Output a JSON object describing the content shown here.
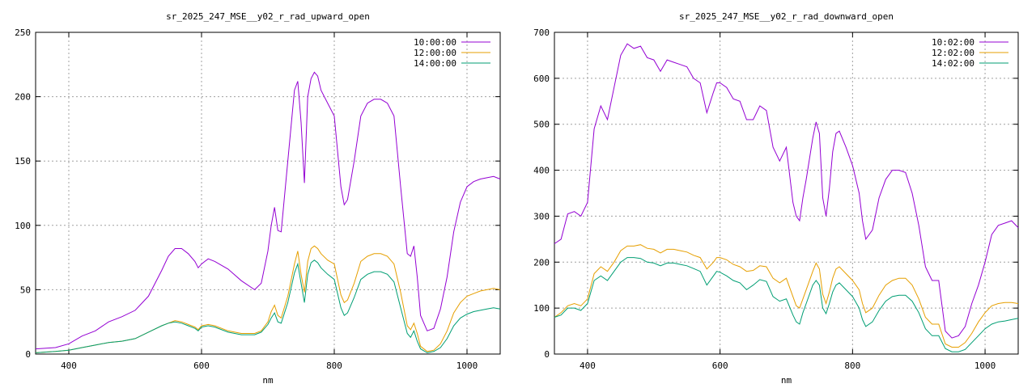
{
  "chart_data": [
    {
      "type": "line",
      "title": "sr_2025_247_MSE__y02_r_rad_upward_open",
      "xlabel": "nm",
      "ylabel": "",
      "xlim": [
        350,
        1050
      ],
      "ylim": [
        0,
        250
      ],
      "xticks": [
        400,
        600,
        800,
        1000
      ],
      "yticks": [
        0,
        50,
        100,
        150,
        200,
        250
      ],
      "grid": true,
      "legend_position": "top-right",
      "series": [
        {
          "name": "10:00:00",
          "color": "#9400d3",
          "x": [
            350,
            380,
            400,
            420,
            440,
            460,
            480,
            500,
            520,
            540,
            550,
            560,
            570,
            580,
            590,
            595,
            600,
            610,
            620,
            640,
            660,
            680,
            690,
            700,
            705,
            710,
            715,
            720,
            730,
            740,
            745,
            750,
            755,
            760,
            765,
            770,
            775,
            780,
            790,
            800,
            810,
            815,
            820,
            830,
            840,
            850,
            860,
            870,
            880,
            890,
            900,
            910,
            915,
            920,
            925,
            930,
            940,
            950,
            960,
            970,
            980,
            990,
            1000,
            1010,
            1020,
            1030,
            1040,
            1050
          ],
          "y": [
            4,
            5,
            8,
            14,
            18,
            25,
            29,
            34,
            45,
            65,
            76,
            82,
            82,
            78,
            72,
            67,
            70,
            74,
            72,
            66,
            57,
            50,
            55,
            80,
            100,
            114,
            96,
            95,
            150,
            205,
            212,
            180,
            133,
            200,
            214,
            219,
            216,
            205,
            195,
            185,
            130,
            116,
            120,
            150,
            185,
            195,
            198,
            198,
            195,
            185,
            130,
            78,
            76,
            84,
            60,
            30,
            18,
            20,
            35,
            60,
            95,
            118,
            130,
            134,
            136,
            137,
            138,
            136
          ]
        },
        {
          "name": "12:00:00",
          "color": "#e69f00",
          "x": [
            350,
            380,
            400,
            420,
            440,
            460,
            480,
            500,
            520,
            540,
            550,
            560,
            570,
            580,
            590,
            595,
            600,
            610,
            620,
            640,
            660,
            680,
            690,
            700,
            705,
            710,
            715,
            720,
            730,
            740,
            745,
            750,
            755,
            760,
            765,
            770,
            775,
            780,
            790,
            800,
            810,
            815,
            820,
            830,
            840,
            850,
            860,
            870,
            880,
            890,
            900,
            910,
            915,
            920,
            925,
            930,
            940,
            950,
            960,
            970,
            980,
            990,
            1000,
            1010,
            1020,
            1030,
            1040,
            1050
          ],
          "y": [
            1,
            2,
            3,
            5,
            7,
            9,
            10,
            12,
            17,
            22,
            24,
            26,
            25,
            23,
            21,
            19,
            22,
            23,
            22,
            18,
            16,
            16,
            18,
            25,
            33,
            38,
            30,
            28,
            45,
            70,
            80,
            62,
            48,
            72,
            82,
            84,
            82,
            78,
            73,
            70,
            46,
            40,
            42,
            55,
            72,
            76,
            78,
            78,
            76,
            70,
            48,
            22,
            19,
            24,
            16,
            6,
            2,
            3,
            8,
            18,
            32,
            40,
            45,
            47,
            49,
            50,
            51,
            50
          ]
        },
        {
          "name": "14:00:00",
          "color": "#009e73",
          "x": [
            350,
            380,
            400,
            420,
            440,
            460,
            480,
            500,
            520,
            540,
            550,
            560,
            570,
            580,
            590,
            595,
            600,
            610,
            620,
            640,
            660,
            680,
            690,
            700,
            705,
            710,
            715,
            720,
            730,
            740,
            745,
            750,
            755,
            760,
            765,
            770,
            775,
            780,
            790,
            800,
            810,
            815,
            820,
            830,
            840,
            850,
            860,
            870,
            880,
            890,
            900,
            910,
            915,
            920,
            925,
            930,
            940,
            950,
            960,
            970,
            980,
            990,
            1000,
            1010,
            1020,
            1030,
            1040,
            1050
          ],
          "y": [
            1,
            2,
            3,
            5,
            7,
            9,
            10,
            12,
            17,
            22,
            24,
            25,
            24,
            22,
            20,
            18,
            21,
            22,
            21,
            17,
            15,
            15,
            17,
            23,
            28,
            32,
            25,
            24,
            40,
            63,
            70,
            55,
            40,
            62,
            71,
            73,
            71,
            67,
            62,
            58,
            36,
            30,
            32,
            44,
            58,
            62,
            64,
            64,
            62,
            56,
            36,
            16,
            13,
            18,
            10,
            4,
            1,
            2,
            5,
            12,
            22,
            28,
            31,
            33,
            34,
            35,
            36,
            35
          ]
        }
      ]
    },
    {
      "type": "line",
      "title": "sr_2025_247_MSE__y02_r_rad_downward_open",
      "xlabel": "nm",
      "ylabel": "",
      "xlim": [
        350,
        1050
      ],
      "ylim": [
        0,
        700
      ],
      "xticks": [
        400,
        600,
        800,
        1000
      ],
      "yticks": [
        0,
        100,
        200,
        300,
        400,
        500,
        600,
        700
      ],
      "grid": true,
      "legend_position": "top-right",
      "series": [
        {
          "name": "10:02:00",
          "color": "#9400d3",
          "x": [
            350,
            360,
            370,
            380,
            390,
            400,
            410,
            420,
            430,
            440,
            450,
            460,
            470,
            480,
            490,
            500,
            510,
            520,
            530,
            540,
            550,
            560,
            570,
            580,
            590,
            595,
            600,
            610,
            620,
            630,
            640,
            650,
            660,
            670,
            680,
            690,
            700,
            710,
            715,
            720,
            725,
            730,
            740,
            745,
            750,
            755,
            760,
            765,
            770,
            775,
            780,
            790,
            800,
            810,
            815,
            820,
            830,
            840,
            850,
            860,
            870,
            880,
            890,
            900,
            910,
            920,
            930,
            940,
            950,
            960,
            970,
            980,
            990,
            1000,
            1010,
            1020,
            1030,
            1040,
            1050
          ],
          "y": [
            240,
            250,
            305,
            310,
            300,
            330,
            490,
            540,
            510,
            580,
            650,
            675,
            665,
            670,
            645,
            640,
            615,
            640,
            635,
            630,
            625,
            600,
            590,
            525,
            570,
            590,
            590,
            580,
            555,
            550,
            510,
            510,
            540,
            530,
            450,
            420,
            450,
            330,
            300,
            290,
            340,
            380,
            470,
            505,
            480,
            340,
            300,
            360,
            440,
            480,
            485,
            450,
            410,
            350,
            290,
            250,
            270,
            340,
            380,
            400,
            400,
            395,
            350,
            280,
            190,
            160,
            160,
            50,
            35,
            40,
            60,
            110,
            150,
            200,
            260,
            280,
            285,
            290,
            275
          ]
        },
        {
          "name": "12:02:00",
          "color": "#e69f00",
          "x": [
            350,
            360,
            370,
            380,
            390,
            400,
            410,
            420,
            430,
            440,
            450,
            460,
            470,
            480,
            490,
            500,
            510,
            520,
            530,
            540,
            550,
            560,
            570,
            580,
            590,
            595,
            600,
            610,
            620,
            630,
            640,
            650,
            660,
            670,
            680,
            690,
            700,
            710,
            715,
            720,
            725,
            730,
            740,
            745,
            750,
            755,
            760,
            765,
            770,
            775,
            780,
            790,
            800,
            810,
            815,
            820,
            830,
            840,
            850,
            860,
            870,
            880,
            890,
            900,
            910,
            920,
            930,
            940,
            950,
            960,
            970,
            980,
            990,
            1000,
            1010,
            1020,
            1030,
            1040,
            1050
          ],
          "y": [
            80,
            90,
            105,
            110,
            105,
            120,
            175,
            190,
            180,
            200,
            225,
            235,
            235,
            238,
            230,
            228,
            220,
            228,
            228,
            225,
            222,
            215,
            210,
            185,
            200,
            210,
            210,
            205,
            195,
            190,
            180,
            182,
            192,
            190,
            165,
            155,
            165,
            125,
            105,
            100,
            120,
            140,
            180,
            198,
            185,
            130,
            110,
            135,
            165,
            185,
            190,
            175,
            160,
            140,
            110,
            90,
            100,
            128,
            150,
            160,
            165,
            165,
            150,
            120,
            80,
            65,
            65,
            22,
            15,
            15,
            25,
            45,
            70,
            90,
            105,
            110,
            112,
            112,
            110
          ]
        },
        {
          "name": "14:02:00",
          "color": "#009e73",
          "x": [
            350,
            360,
            370,
            380,
            390,
            400,
            410,
            420,
            430,
            440,
            450,
            460,
            470,
            480,
            490,
            500,
            510,
            520,
            530,
            540,
            550,
            560,
            570,
            580,
            590,
            595,
            600,
            610,
            620,
            630,
            640,
            650,
            660,
            670,
            680,
            690,
            700,
            710,
            715,
            720,
            725,
            730,
            740,
            745,
            750,
            755,
            760,
            765,
            770,
            775,
            780,
            790,
            800,
            810,
            815,
            820,
            830,
            840,
            850,
            860,
            870,
            880,
            890,
            900,
            910,
            920,
            930,
            940,
            950,
            960,
            970,
            980,
            990,
            1000,
            1010,
            1020,
            1030,
            1040,
            1050
          ],
          "y": [
            80,
            85,
            100,
            100,
            95,
            110,
            160,
            170,
            160,
            180,
            200,
            210,
            210,
            208,
            200,
            198,
            192,
            198,
            198,
            195,
            192,
            186,
            180,
            150,
            170,
            180,
            178,
            170,
            160,
            155,
            140,
            150,
            162,
            158,
            125,
            115,
            120,
            85,
            70,
            65,
            90,
            110,
            150,
            160,
            150,
            100,
            88,
            110,
            135,
            150,
            155,
            140,
            125,
            100,
            75,
            60,
            70,
            95,
            115,
            125,
            128,
            128,
            115,
            90,
            55,
            40,
            40,
            12,
            5,
            5,
            10,
            25,
            40,
            55,
            65,
            70,
            72,
            75,
            78
          ]
        }
      ]
    }
  ]
}
